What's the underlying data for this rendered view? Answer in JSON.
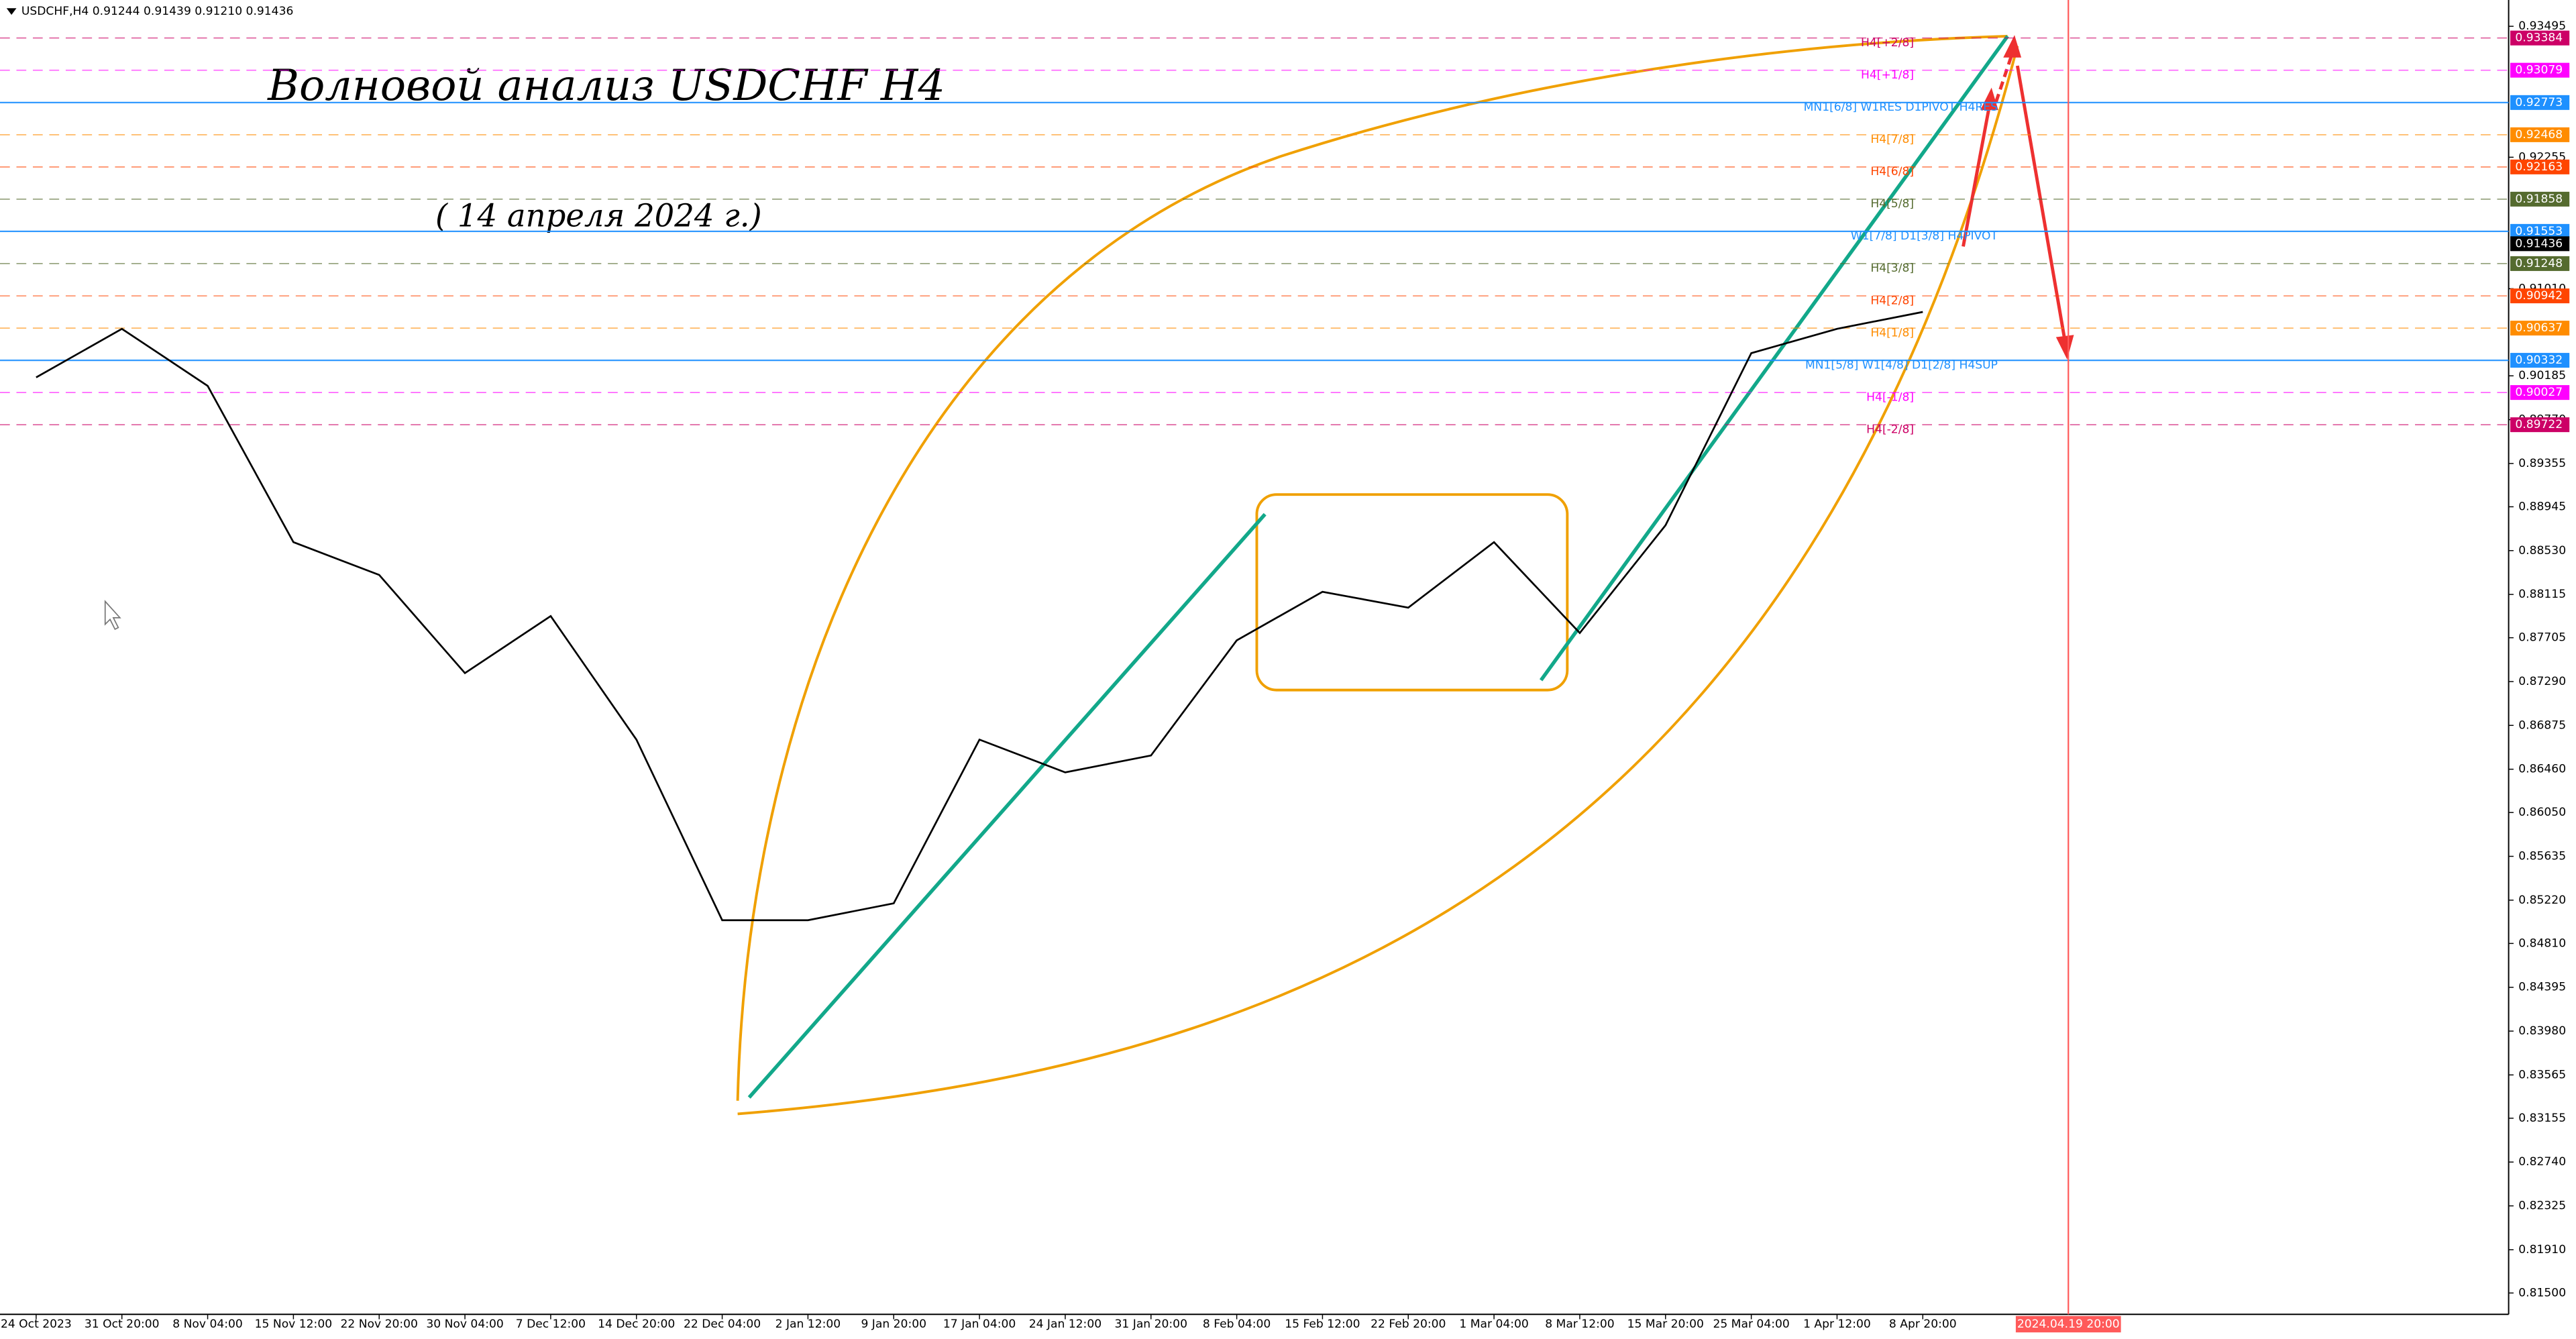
{
  "chart_data": {
    "type": "line",
    "header": "USDCHF,H4  0.91244 0.91439 0.91210 0.91436",
    "title": "Волновой анализ USDCHF H4",
    "subtitle": "( 14 апреля 2024 г.)",
    "categories": [
      "24 Oct 2023",
      "31 Oct 20:00",
      "8 Nov 04:00",
      "15 Nov 12:00",
      "22 Nov 20:00",
      "30 Nov 04:00",
      "7 Dec 12:00",
      "14 Dec 20:00",
      "22 Dec 04:00",
      "2 Jan 12:00",
      "9 Jan 20:00",
      "17 Jan 04:00",
      "24 Jan 12:00",
      "31 Jan 20:00",
      "8 Feb 04:00",
      "15 Feb 12:00",
      "22 Feb 20:00",
      "1 Mar 04:00",
      "8 Mar 12:00",
      "15 Mar 20:00",
      "25 Mar 04:00",
      "1 Apr 12:00",
      "8 Apr 20:00"
    ],
    "values": [
      0.9017,
      0.9063,
      0.9009,
      0.8861,
      0.883,
      0.8737,
      0.8791,
      0.8674,
      0.8503,
      0.8503,
      0.8519,
      0.8674,
      0.8643,
      0.8659,
      0.8768,
      0.8814,
      0.8799,
      0.8861,
      0.8775,
      0.8877,
      0.904,
      0.9063,
      0.9079
    ],
    "color": "#000000",
    "cursor": {
      "label": "2024.04.19 20:00",
      "color": "#ff5a5a"
    },
    "ylim": [
      0.81298,
      0.93697
    ],
    "yticks": [
      0.93495,
      0.92255,
      {
        "value": 0.9101,
        "label": "0.91010"
      },
      0.90185,
      {
        "value": 0.8977,
        "label": "0.89770"
      },
      0.89355,
      0.88945,
      {
        "value": 0.8853,
        "label": "0.88530"
      },
      0.88115,
      0.87705,
      {
        "value": 0.8729,
        "label": "0.87290"
      },
      0.86875,
      {
        "value": 0.8646,
        "label": "0.86460"
      },
      {
        "value": 0.8605,
        "label": "0.86050"
      },
      0.85635,
      {
        "value": 0.8522,
        "label": "0.85220"
      },
      {
        "value": 0.8481,
        "label": "0.84810"
      },
      0.84395,
      {
        "value": 0.8398,
        "label": "0.83980"
      },
      0.83565,
      0.83155,
      {
        "value": 0.8274,
        "label": "0.82740"
      },
      0.82325,
      {
        "value": 0.8191,
        "label": "0.81910"
      },
      {
        "value": 0.815,
        "label": "0.81500"
      }
    ],
    "current_price": 0.91436,
    "levels": [
      {
        "label": "H4[+2/8]",
        "value": 0.93384,
        "color": "#cc0066",
        "style": "dashed"
      },
      {
        "label": "H4[+1/8]",
        "value": 0.93079,
        "color": "#ff00ff",
        "style": "dashed"
      },
      {
        "label": "MN1[6/8] W1RES D1PIVOT H4RES",
        "value": 0.92773,
        "color": "#1e90ff",
        "style": "solid"
      },
      {
        "label": "H4[7/8]",
        "value": 0.92468,
        "color": "#ff8c00",
        "style": "dashed"
      },
      {
        "label": "H4[6/8]",
        "value": 0.92163,
        "color": "#ff4500",
        "style": "dashed"
      },
      {
        "label": "H4[5/8]",
        "value": 0.91858,
        "color": "#556b2f",
        "style": "dashed"
      },
      {
        "label": "W1[7/8] D1[3/8] H4PIVOT",
        "value": 0.91553,
        "color": "#1e90ff",
        "style": "solid"
      },
      {
        "label": "H4[3/8]",
        "value": 0.91248,
        "color": "#556b2f",
        "style": "dashed"
      },
      {
        "label": "H4[2/8]",
        "value": 0.90942,
        "color": "#ff4500",
        "style": "dashed"
      },
      {
        "label": "H4[1/8]",
        "value": 0.90637,
        "color": "#ff8c00",
        "style": "dashed"
      },
      {
        "label": "MN1[5/8] W1[4/8] D1[2/8] H4SUP",
        "value": 0.90332,
        "color": "#1e90ff",
        "style": "solid"
      },
      {
        "label": "H4[-1/8]",
        "value": 0.90027,
        "color": "#ff00ff",
        "style": "dashed"
      },
      {
        "label": "H4[-2/8]",
        "value": 0.89722,
        "color": "#cc0066",
        "style": "dashed"
      }
    ]
  }
}
